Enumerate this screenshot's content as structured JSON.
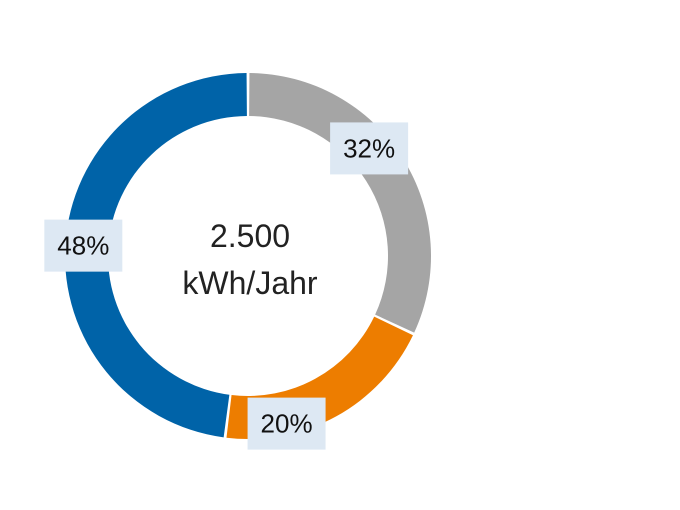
{
  "chart_data": {
    "type": "donut",
    "center_text": [
      "2.500",
      "kWh/Jahr"
    ],
    "slices": [
      {
        "label": "32%",
        "value": 32,
        "color": "#a5a5a5"
      },
      {
        "label": "20%",
        "value": 20,
        "color": "#ed7d00"
      },
      {
        "label": "48%",
        "value": 48,
        "color": "#0063a8"
      }
    ],
    "start_angle_deg": 0,
    "direction": "clockwise",
    "label_box_color": "#dde8f3",
    "legend": "none"
  }
}
